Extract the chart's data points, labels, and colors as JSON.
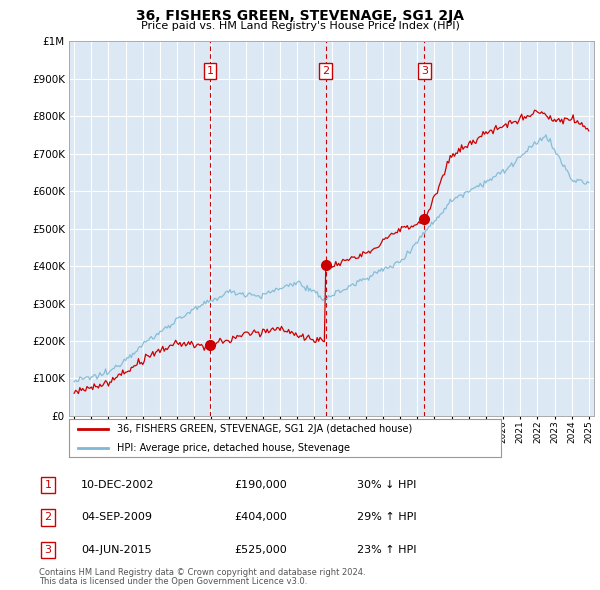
{
  "title": "36, FISHERS GREEN, STEVENAGE, SG1 2JA",
  "subtitle": "Price paid vs. HM Land Registry's House Price Index (HPI)",
  "legend_entry1": "36, FISHERS GREEN, STEVENAGE, SG1 2JA (detached house)",
  "legend_entry2": "HPI: Average price, detached house, Stevenage",
  "transactions": [
    {
      "num": 1,
      "date_str": "10-DEC-2002",
      "year": 2002.92,
      "price": 190000,
      "pct": "30%",
      "dir": "↓"
    },
    {
      "num": 2,
      "date_str": "04-SEP-2009",
      "year": 2009.67,
      "price": 404000,
      "pct": "29%",
      "dir": "↑"
    },
    {
      "num": 3,
      "date_str": "04-JUN-2015",
      "year": 2015.42,
      "price": 525000,
      "pct": "23%",
      "dir": "↑"
    }
  ],
  "footer1": "Contains HM Land Registry data © Crown copyright and database right 2024.",
  "footer2": "This data is licensed under the Open Government Licence v3.0.",
  "red_color": "#cc0000",
  "blue_color": "#7eb8d4",
  "bg_color": "#ffffff",
  "plot_bg_color": "#dce9f5",
  "grid_color": "#ffffff",
  "ylim": [
    0,
    1000000
  ],
  "xlim_start": 1994.7,
  "xlim_end": 2025.3
}
